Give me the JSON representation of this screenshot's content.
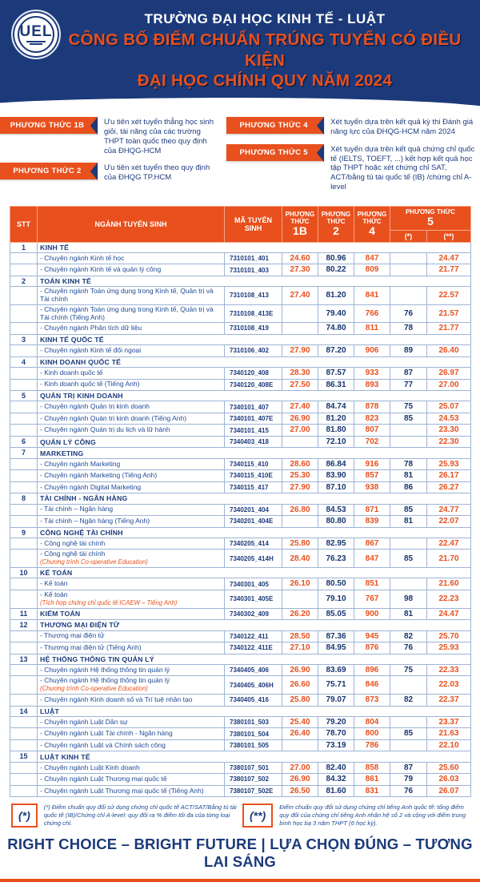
{
  "banner": {
    "logo_text": "UEL",
    "school_name": "TRƯỜNG ĐẠI HỌC KINH TẾ - LUẬT",
    "title_line1": "CÔNG BỐ ĐIỂM CHUẨN TRÚNG TUYỂN CÓ ĐIỀU KIỆN",
    "title_line2": "ĐẠI HỌC CHÍNH QUY NĂM 2024"
  },
  "colors": {
    "navy": "#1c3a7a",
    "orange": "#e8501d",
    "table_border": "#9db4d6"
  },
  "methods": [
    {
      "badge": "PHƯƠNG THỨC 1B",
      "desc": "Ưu tiên xét tuyển thẳng học sinh giỏi, tài năng của các trường THPT toàn quốc theo quy định của ĐHQG-HCM"
    },
    {
      "badge": "PHƯƠNG THỨC 2",
      "desc": "Ưu tiên xét tuyển theo quy định của ĐHQG TP.HCM"
    },
    {
      "badge": "PHƯƠNG THỨC 4",
      "desc": "Xét tuyển dựa trên kết quả kỳ thi Đánh giá năng lực của ĐHQG-HCM năm 2024"
    },
    {
      "badge": "PHƯƠNG THỨC 5",
      "desc": "Xét tuyển dựa trên kết quả chứng chỉ quốc tế (IELTS, TOEFT, ...) kết hợp kết quả học tập THPT hoặc xét chứng chỉ SAT, ACT/bằng tú tài quốc tế (IB) /chứng chỉ A-level"
    }
  ],
  "table": {
    "headers": {
      "stt": "STT",
      "major": "NGÀNH TUYỂN SINH",
      "code": "MÃ TUYỂN SINH",
      "method_word": "PHƯƠNG THỨC",
      "m1b": "1B",
      "m2": "2",
      "m4": "4",
      "m5": "5",
      "m5a": "(*)",
      "m5b": "(**)"
    },
    "sections": [
      {
        "stt": "1",
        "name": "KINH TẾ",
        "programs": [
          {
            "name": "Chuyên ngành Kinh tế học",
            "code": "7310101_401",
            "m1b": "24.60",
            "m2": "80.96",
            "m4": "847",
            "m5a": "",
            "m5b": "24.47"
          },
          {
            "name": "Chuyên ngành Kinh tế và quản lý công",
            "code": "7310101_403",
            "m1b": "27.30",
            "m2": "80.22",
            "m4": "809",
            "m5a": "",
            "m5b": "21.77"
          }
        ]
      },
      {
        "stt": "2",
        "name": "TOÁN KINH TẾ",
        "programs": [
          {
            "name": "Chuyên ngành Toán ứng dụng trong Kinh tế, Quản trị và Tài chính",
            "code": "7310108_413",
            "m1b": "27.40",
            "m2": "81.20",
            "m4": "841",
            "m5a": "",
            "m5b": "22.57"
          },
          {
            "name": "Chuyên ngành Toán ứng dụng trong Kinh tế, Quản trị và Tài chính (Tiếng Anh)",
            "code": "7310108_413E",
            "m1b": "",
            "m2": "79.40",
            "m4": "766",
            "m5a": "76",
            "m5b": "21.57"
          },
          {
            "name": "Chuyên ngành Phân tích dữ liệu",
            "code": "7310108_419",
            "m1b": "",
            "m2": "74.80",
            "m4": "811",
            "m5a": "78",
            "m5b": "21.77"
          }
        ]
      },
      {
        "stt": "3",
        "name": "KINH TẾ QUỐC TẾ",
        "programs": [
          {
            "name": "Chuyên ngành Kinh tế đối ngoại",
            "code": "7310106_402",
            "m1b": "27.90",
            "m2": "87.20",
            "m4": "906",
            "m5a": "89",
            "m5b": "26.40"
          }
        ]
      },
      {
        "stt": "4",
        "name": "KINH DOANH QUỐC TẾ",
        "programs": [
          {
            "name": "Kinh doanh quốc tế",
            "code": "7340120_408",
            "m1b": "28.30",
            "m2": "87.57",
            "m4": "933",
            "m5a": "87",
            "m5b": "26.97"
          },
          {
            "name": "Kinh doanh quốc tế (Tiếng Anh)",
            "code": "7340120_408E",
            "m1b": "27.50",
            "m2": "86.31",
            "m4": "893",
            "m5a": "77",
            "m5b": "27.00"
          }
        ]
      },
      {
        "stt": "5",
        "name": "QUẢN TRỊ KINH DOANH",
        "programs": [
          {
            "name": "Chuyên ngành Quản trị kinh doanh",
            "code": "7340101_407",
            "m1b": "27.40",
            "m2": "84.74",
            "m4": "878",
            "m5a": "75",
            "m5b": "25.07"
          },
          {
            "name": "Chuyên ngành Quản trị kinh doanh (Tiếng Anh)",
            "code": "7340101_407E",
            "m1b": "26.90",
            "m2": "81.20",
            "m4": "823",
            "m5a": "85",
            "m5b": "24.53"
          },
          {
            "name": "Chuyên ngành Quản trị du lịch và lữ hành",
            "code": "7340101_415",
            "m1b": "27.00",
            "m2": "81.80",
            "m4": "807",
            "m5a": "",
            "m5b": "23.30"
          }
        ]
      },
      {
        "stt": "6",
        "name": "QUẢN LÝ CÔNG",
        "code": "7340403_418",
        "m1b": "",
        "m2": "72.10",
        "m4": "702",
        "m5a": "",
        "m5b": "22.30",
        "programs": []
      },
      {
        "stt": "7",
        "name": "MARKETING",
        "programs": [
          {
            "name": "Chuyên ngành Marketing",
            "code": "7340115_410",
            "m1b": "28.60",
            "m2": "86.84",
            "m4": "916",
            "m5a": "78",
            "m5b": "25.93"
          },
          {
            "name": "Chuyên ngành Marketing (Tiếng Anh)",
            "code": "7340115_410E",
            "m1b": "25.30",
            "m2": "83.90",
            "m4": "857",
            "m5a": "81",
            "m5b": "26.17"
          },
          {
            "name": "Chuyên ngành Digital Marketing",
            "code": "7340115_417",
            "m1b": "27.90",
            "m2": "87.10",
            "m4": "938",
            "m5a": "86",
            "m5b": "26.27"
          }
        ]
      },
      {
        "stt": "8",
        "name": "TÀI CHÍNH - NGÂN HÀNG",
        "programs": [
          {
            "name": "Tài chính – Ngân hàng",
            "code": "7340201_404",
            "m1b": "26.80",
            "m2": "84.53",
            "m4": "871",
            "m5a": "85",
            "m5b": "24.77"
          },
          {
            "name": "Tài chính – Ngân hàng (Tiếng Anh)",
            "code": "7340201_404E",
            "m1b": "",
            "m2": "80.80",
            "m4": "839",
            "m5a": "81",
            "m5b": "22.07"
          }
        ]
      },
      {
        "stt": "9",
        "name": "CÔNG NGHỆ TÀI CHÍNH",
        "programs": [
          {
            "name": "Công nghệ tài chính",
            "code": "7340205_414",
            "m1b": "25.80",
            "m2": "82.95",
            "m4": "867",
            "m5a": "",
            "m5b": "22.47"
          },
          {
            "name": "Công nghệ tài chính",
            "note": "(Chương trình Co-operative Education)",
            "code": "7340205_414H",
            "m1b": "28.40",
            "m2": "76.23",
            "m4": "847",
            "m5a": "85",
            "m5b": "21.70"
          }
        ]
      },
      {
        "stt": "10",
        "name": "KẾ TOÁN",
        "programs": [
          {
            "name": "Kế toán",
            "code": "7340301_405",
            "m1b": "26.10",
            "m2": "80.50",
            "m4": "851",
            "m5a": "",
            "m5b": "21.60"
          },
          {
            "name": "Kế toán",
            "note": "(Tích hợp chứng chỉ quốc tế ICAEW – Tiếng Anh)",
            "code": "7340301_405E",
            "m1b": "",
            "m2": "79.10",
            "m4": "767",
            "m5a": "98",
            "m5b": "22.23"
          }
        ]
      },
      {
        "stt": "11",
        "name": "KIỂM TOÁN",
        "code": "7340302_409",
        "m1b": "26.20",
        "m2": "85.05",
        "m4": "900",
        "m5a": "81",
        "m5b": "24.47",
        "programs": []
      },
      {
        "stt": "12",
        "name": "THƯƠNG MẠI ĐIỆN TỬ",
        "programs": [
          {
            "name": "Thương mại điện tử",
            "code": "7340122_411",
            "m1b": "28.50",
            "m2": "87.36",
            "m4": "945",
            "m5a": "82",
            "m5b": "25.70"
          },
          {
            "name": "Thương mại điện tử (Tiếng Anh)",
            "code": "7340122_411E",
            "m1b": "27.10",
            "m2": "84.95",
            "m4": "876",
            "m5a": "76",
            "m5b": "25.93"
          }
        ]
      },
      {
        "stt": "13",
        "name": "HỆ THỐNG THÔNG TIN QUẢN LÝ",
        "programs": [
          {
            "name": "Chuyên ngành Hệ thống thông tin quản lý",
            "code": "7340405_406",
            "m1b": "26.90",
            "m2": "83.69",
            "m4": "896",
            "m5a": "75",
            "m5b": "22.33"
          },
          {
            "name": "Chuyên ngành Hệ thống thông tin quản lý",
            "note": "(Chương trình Co-operative Education)",
            "code": "7340405_406H",
            "m1b": "26.60",
            "m2": "75.71",
            "m4": "846",
            "m5a": "",
            "m5b": "22.03"
          },
          {
            "name": "Chuyên ngành Kinh doanh số và Trí tuệ nhân tạo",
            "code": "7340405_416",
            "m1b": "25.80",
            "m2": "79.07",
            "m4": "873",
            "m5a": "82",
            "m5b": "22.37"
          }
        ]
      },
      {
        "stt": "14",
        "name": "LUẬT",
        "programs": [
          {
            "name": "Chuyên ngành Luật Dân sự",
            "code": "7380101_503",
            "m1b": "25.40",
            "m2": "79.20",
            "m4": "804",
            "m5a": "",
            "m5b": "23.37"
          },
          {
            "name": "Chuyên ngành Luật Tài chính - Ngân hàng",
            "code": "7380101_504",
            "m1b": "26.40",
            "m2": "78.70",
            "m4": "800",
            "m5a": "85",
            "m5b": "21.63"
          },
          {
            "name": "Chuyên ngành Luật và Chính sách công",
            "code": "7380101_505",
            "m1b": "",
            "m2": "73.19",
            "m4": "786",
            "m5a": "",
            "m5b": "22.10"
          }
        ]
      },
      {
        "stt": "15",
        "name": "LUẬT KINH TẾ",
        "programs": [
          {
            "name": "Chuyên ngành Luật Kinh doanh",
            "code": "7380107_501",
            "m1b": "27.00",
            "m2": "82.40",
            "m4": "858",
            "m5a": "87",
            "m5b": "25.60"
          },
          {
            "name": "Chuyên ngành Luật Thương mại quốc tế",
            "code": "7380107_502",
            "m1b": "26.90",
            "m2": "84.32",
            "m4": "861",
            "m5a": "79",
            "m5b": "26.03"
          },
          {
            "name": "Chuyên ngành Luật Thương mại quốc tế (Tiếng Anh)",
            "code": "7380107_502E",
            "m1b": "26.50",
            "m2": "81.60",
            "m4": "831",
            "m5a": "76",
            "m5b": "26.07"
          }
        ]
      }
    ]
  },
  "footnotes": [
    {
      "mark": "(*)",
      "text": "(*) Điểm chuẩn quy đổi sử dụng chứng chỉ quốc tế ACT/SAT/Bằng tú tài quốc tế (IB)/Chứng chỉ A-level: quy đổi ra % điểm tối đa của từng loại chứng chỉ."
    },
    {
      "mark": "(**)",
      "text": "Điểm chuẩn quy đổi sử dụng chứng chỉ tiếng Anh quốc tế: tổng điểm quy đổi của chứng chỉ tiếng Anh nhân hệ số 2 và cộng với điểm trung bình học bạ 3 năm THPT (6 học kỳ)."
    }
  ],
  "footer": "RIGHT CHOICE – BRIGHT FUTURE | LỰA CHỌN ĐÚNG – TƯƠNG LAI SÁNG"
}
